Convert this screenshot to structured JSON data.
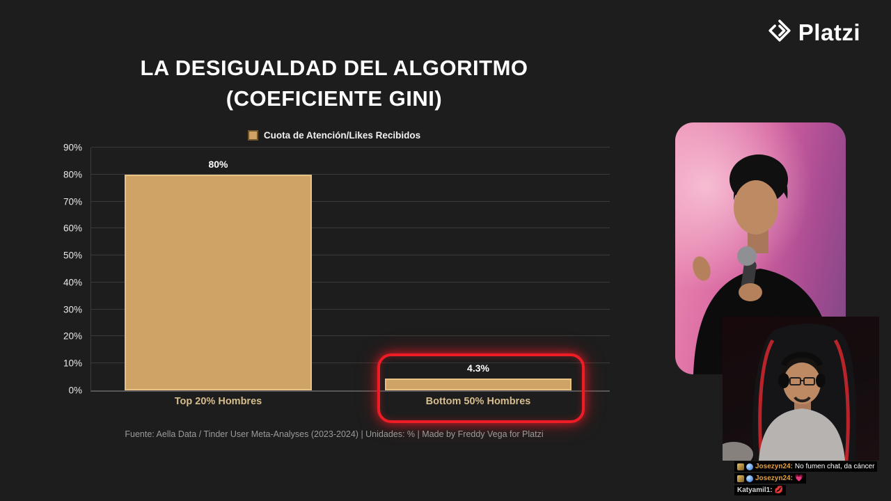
{
  "logo": {
    "text": "Platzi"
  },
  "title": {
    "line1": "LA DESIGUALDAD DEL ALGORITMO",
    "line2": "(COEFICIENTE GINI)"
  },
  "chart_data": {
    "type": "bar",
    "title": "LA DESIGUALDAD DEL ALGORITMO (COEFICIENTE GINI)",
    "legend": [
      "Cuota de Atención/Likes Recibidos"
    ],
    "legend_position": "top",
    "categories": [
      "Top 20% Hombres",
      "Bottom 50% Hombres"
    ],
    "values": [
      80,
      4.3
    ],
    "value_labels": [
      "80%",
      "4.3%"
    ],
    "ylim": [
      0,
      90
    ],
    "ytick_step": 10,
    "yticks": [
      "0%",
      "10%",
      "20%",
      "30%",
      "40%",
      "50%",
      "60%",
      "70%",
      "80%",
      "90%"
    ],
    "grid": true,
    "bar_color": "#cfa265",
    "bar_border_color": "#e9c285",
    "highlight": {
      "target": "Bottom 50% Hombres",
      "style": "red rounded outline with glow",
      "color": "#ee1c25"
    },
    "source": "Fuente: Aella Data / Tinder User Meta-Analyses (2023-2024) | Unidades: % | Made by Freddy Vega for Platzi"
  },
  "chat": {
    "messages": [
      {
        "user": "Josezyn24:",
        "text": "No fumen chat, da cáncer",
        "badges": [
          "subscriber",
          "globe"
        ]
      },
      {
        "user": "Josezyn24:",
        "text": "💗",
        "badges": [
          "subscriber",
          "globe"
        ]
      },
      {
        "user": "Katyamil1:",
        "text": "💋",
        "badges": []
      }
    ]
  }
}
